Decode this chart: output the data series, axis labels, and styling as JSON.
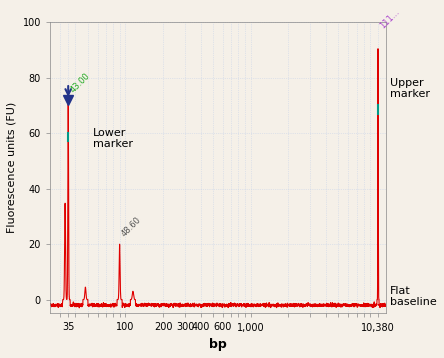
{
  "title": "",
  "xlabel": "bp",
  "ylabel": "Fluorescence units (FU)",
  "ylim": [
    -5,
    100
  ],
  "bg_color": "#f5f0e8",
  "grid_color": "#c8d4e8",
  "line_color": "#e00000",
  "lower_marker_bp": 35,
  "lower_marker_fu": 72,
  "lower_marker_label": "43.00",
  "lower_marker_label_color": "#22aa22",
  "lower_marker_text": "Lower\nmarker",
  "upper_marker_bp": 10380,
  "upper_marker_fu": 95,
  "upper_marker_label": "111...",
  "upper_marker_label_color": "#aa44cc",
  "upper_marker_text": "Upper\nmarker",
  "upper_marker_line_fu": 69,
  "second_peak_bp": 90,
  "second_peak_fu": 20,
  "second_peak_label": "48.60",
  "flat_baseline_text": "Flat\nbaseline",
  "xticks": [
    35,
    100,
    200,
    300,
    400,
    600,
    1000,
    10380
  ],
  "xtick_labels": [
    "35",
    "100",
    "200",
    "300",
    "400",
    "600",
    "1,000",
    "10,380"
  ],
  "yticks": [
    0,
    20,
    40,
    60,
    80,
    100
  ],
  "arrow_color": "#22338a"
}
